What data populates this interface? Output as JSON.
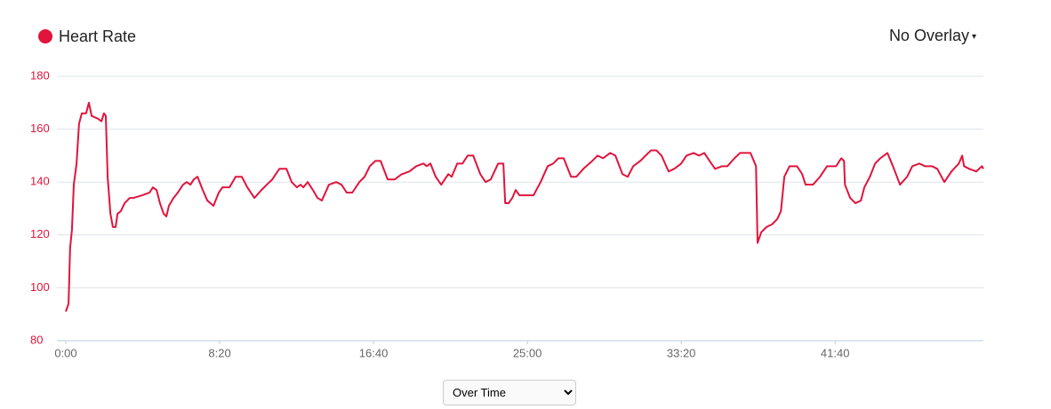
{
  "chart_data": {
    "type": "line",
    "legend_title": "Heart Rate",
    "overlay_label": "No Overlay",
    "mode_options": [
      "Over Time"
    ],
    "xlim": [
      0,
      2982
    ],
    "xticks": [
      {
        "value": 0,
        "label": "0:00"
      },
      {
        "value": 500,
        "label": "8:20"
      },
      {
        "value": 1000,
        "label": "16:40"
      },
      {
        "value": 1500,
        "label": "25:00"
      },
      {
        "value": 2000,
        "label": "33:20"
      },
      {
        "value": 2500,
        "label": "41:40"
      }
    ],
    "ylim": [
      80,
      180
    ],
    "yticks": [
      80,
      100,
      120,
      140,
      160,
      180
    ],
    "grid": true,
    "x": [
      0,
      9,
      14,
      20,
      26,
      35,
      43,
      52,
      66,
      75,
      84,
      104,
      116,
      124,
      130,
      136,
      145,
      153,
      162,
      168,
      179,
      191,
      208,
      220,
      249,
      272,
      283,
      295,
      306,
      318,
      327,
      335,
      350,
      364,
      381,
      393,
      405,
      416,
      428,
      445,
      460,
      480,
      497,
      509,
      532,
      552,
      572,
      590,
      613,
      636,
      653,
      671,
      694,
      717,
      734,
      751,
      763,
      772,
      786,
      803,
      818,
      832,
      855,
      879,
      896,
      913,
      931,
      954,
      971,
      988,
      1006,
      1023,
      1046,
      1069,
      1092,
      1116,
      1139,
      1162,
      1173,
      1185,
      1202,
      1220,
      1243,
      1254,
      1272,
      1289,
      1306,
      1324,
      1347,
      1364,
      1381,
      1405,
      1422,
      1428,
      1439,
      1451,
      1462,
      1474,
      1497,
      1520,
      1543,
      1566,
      1584,
      1601,
      1618,
      1642,
      1659,
      1682,
      1711,
      1728,
      1746,
      1769,
      1786,
      1809,
      1826,
      1844,
      1867,
      1884,
      1902,
      1919,
      1936,
      1959,
      1977,
      2000,
      2017,
      2040,
      2058,
      2075,
      2092,
      2110,
      2133,
      2150,
      2173,
      2191,
      2225,
      2243,
      2248,
      2260,
      2277,
      2295,
      2312,
      2324,
      2335,
      2352,
      2376,
      2393,
      2404,
      2428,
      2451,
      2474,
      2503,
      2520,
      2529,
      2532,
      2549,
      2566,
      2584,
      2595,
      2613,
      2630,
      2647,
      2670,
      2688,
      2711,
      2734,
      2751,
      2774,
      2792,
      2815,
      2832,
      2855,
      2878,
      2902,
      2913,
      2919,
      2936,
      2959,
      2977,
      2982
    ],
    "series": [
      {
        "name": "Heart Rate",
        "color": "#e0143c",
        "values": [
          91,
          94,
          115,
          122,
          139,
          147,
          162,
          166,
          166,
          170,
          165,
          164,
          163,
          166,
          165,
          142,
          128,
          123,
          123,
          128,
          129,
          132,
          134,
          134,
          135,
          136,
          138,
          137,
          132,
          128,
          127,
          131,
          134,
          136,
          139,
          140,
          139,
          141,
          142,
          137,
          133,
          131,
          136,
          138,
          138,
          142,
          142,
          138,
          134,
          137,
          139,
          141,
          145,
          145,
          140,
          138,
          139,
          138,
          140,
          137,
          134,
          133,
          139,
          140,
          139,
          136,
          136,
          140,
          142,
          146,
          148,
          148,
          141,
          141,
          143,
          144,
          146,
          147,
          146,
          147,
          142,
          139,
          143,
          142,
          147,
          147,
          150,
          150,
          143,
          140,
          141,
          147,
          147,
          132,
          132,
          134,
          137,
          135,
          135,
          135,
          140,
          146,
          147,
          149,
          149,
          142,
          142,
          145,
          148,
          150,
          149,
          151,
          150,
          143,
          142,
          146,
          148,
          150,
          152,
          152,
          150,
          144,
          145,
          147,
          150,
          151,
          150,
          151,
          148,
          145,
          146,
          146,
          149,
          151,
          151,
          146,
          117,
          121,
          123,
          124,
          126,
          129,
          142,
          146,
          146,
          143,
          139,
          139,
          142,
          146,
          146,
          149,
          148,
          139,
          134,
          132,
          133,
          138,
          142,
          147,
          149,
          151,
          146,
          139,
          142,
          146,
          147,
          146,
          146,
          145,
          140,
          144,
          147,
          150,
          146,
          145,
          144,
          146,
          145
        ]
      }
    ]
  }
}
